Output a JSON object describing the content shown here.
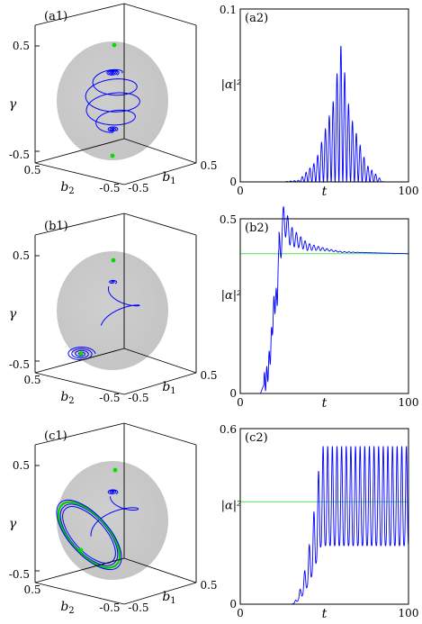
{
  "chart_data": [
    {
      "panel": "a1",
      "type": "scatter",
      "title": "(a1)",
      "xlabel": "b2",
      "ylabel": "b1",
      "zlabel": "γ",
      "x_ticks": [
        "0.5",
        "-0.5"
      ],
      "y_ticks": [
        "0.5",
        "-0.5"
      ],
      "z_ticks": [
        "0.5",
        "-0.5"
      ],
      "fixed_points": [
        {
          "b1": 0,
          "b2": 0,
          "gamma": 0.5
        },
        {
          "b1": 0,
          "b2": 0,
          "gamma": -0.5
        }
      ],
      "colors": {
        "trajectory": "#0000ff",
        "fixed_point": "#00dd00",
        "sphere": "#c8c8c8"
      }
    },
    {
      "panel": "a2",
      "type": "line",
      "title": "(a2)",
      "xlabel": "t",
      "ylabel": "|α|²",
      "xlim": [
        0,
        100
      ],
      "ylim": [
        0,
        0.1
      ],
      "x_ticks": [
        "0",
        "100"
      ],
      "y_ticks": [
        "0",
        "0.1"
      ],
      "series": [
        {
          "color": "#0000ff",
          "envelope": {
            "x": [
              0,
              25,
              35,
              45,
              55,
              60,
              65,
              75,
              85,
              100
            ],
            "y": [
              0,
              0,
              0.001,
              0.012,
              0.045,
              0.08,
              0.04,
              0.01,
              0,
              0
            ]
          },
          "oscillation_period": 2.3
        }
      ]
    },
    {
      "panel": "b1",
      "type": "scatter",
      "title": "(b1)",
      "xlabel": "b2",
      "ylabel": "b1",
      "zlabel": "γ",
      "x_ticks": [
        "0.5",
        "-0.5"
      ],
      "y_ticks": [
        "0.5",
        "-0.5"
      ],
      "z_ticks": [
        "0.5",
        "-0.5"
      ],
      "fixed_points": [
        {
          "b1": 0,
          "b2": 0,
          "gamma": 0.5
        },
        {
          "b1": -0.3,
          "b2": 0.2,
          "gamma": -0.35
        }
      ],
      "colors": {
        "trajectory": "#0000ff",
        "fixed_point": "#00dd00",
        "sphere": "#c8c8c8"
      }
    },
    {
      "panel": "b2",
      "type": "line",
      "title": "(b2)",
      "xlabel": "t",
      "ylabel": "|α|²",
      "xlim": [
        0,
        100
      ],
      "ylim": [
        0,
        0.5
      ],
      "x_ticks": [
        "0",
        "100"
      ],
      "y_ticks": [
        "0",
        "0.5"
      ],
      "steady_state": 0.4,
      "series": [
        {
          "color": "#0000ff",
          "key_points": {
            "x": [
              0,
              12,
              16,
              18,
              20,
              22,
              23,
              26,
              30,
              40,
              60,
              100
            ],
            "y": [
              0,
              0,
              0.05,
              0.12,
              0.25,
              0.28,
              0.4,
              0.5,
              0.45,
              0.42,
              0.405,
              0.4
            ]
          }
        }
      ]
    },
    {
      "panel": "c1",
      "type": "scatter",
      "title": "(c1)",
      "xlabel": "b2",
      "ylabel": "b1",
      "zlabel": "γ",
      "x_ticks": [
        "0.5",
        "-0.5"
      ],
      "y_ticks": [
        "0.5",
        "-0.5"
      ],
      "z_ticks": [
        "0.5",
        "-0.5"
      ],
      "fixed_points": [
        {
          "b1": 0,
          "b2": 0,
          "gamma": 0.5
        },
        {
          "b1": -0.3,
          "b2": 0.3,
          "gamma": -0.2
        }
      ],
      "limit_cycle": true,
      "colors": {
        "trajectory": "#0000ff",
        "limit_cycle": "#00cc00",
        "fixed_point": "#00dd00",
        "sphere": "#c8c8c8"
      }
    },
    {
      "panel": "c2",
      "type": "line",
      "title": "(c2)",
      "xlabel": "t",
      "ylabel": "|α|²",
      "xlim": [
        0,
        100
      ],
      "ylim": [
        0,
        0.6
      ],
      "x_ticks": [
        "0",
        "100"
      ],
      "y_ticks": [
        "0",
        "0.6"
      ],
      "steady_state": 0.35,
      "series": [
        {
          "color": "#0000ff",
          "oscillation": {
            "x_start": 30,
            "rise_end": 48,
            "max": 0.54,
            "min": 0.2,
            "period": 2.75
          }
        }
      ]
    }
  ]
}
